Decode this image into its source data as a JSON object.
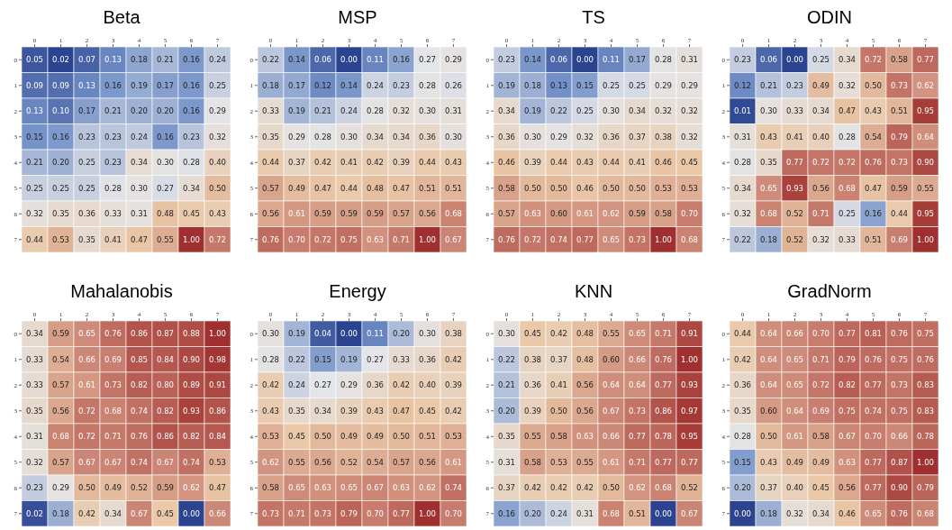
{
  "chart_data": [
    {
      "type": "heatmap",
      "title": "Beta",
      "categories": [
        "0",
        "1",
        "2",
        "3",
        "4",
        "5",
        "6",
        "7"
      ],
      "y_categories": [
        "0",
        "1",
        "2",
        "3",
        "4",
        "5",
        "6",
        "7"
      ],
      "data_labels": true,
      "cells": [
        [
          0.05,
          0.02,
          0.07,
          0.13,
          0.18,
          0.21,
          0.16,
          0.24
        ],
        [
          0.09,
          0.09,
          0.13,
          0.16,
          0.19,
          0.17,
          0.16,
          0.25
        ],
        [
          0.13,
          0.1,
          0.17,
          0.21,
          0.2,
          0.2,
          0.16,
          0.29
        ],
        [
          0.15,
          0.16,
          0.23,
          0.23,
          0.24,
          0.16,
          0.23,
          0.32
        ],
        [
          0.21,
          0.2,
          0.25,
          0.23,
          0.34,
          0.3,
          0.28,
          0.4
        ],
        [
          0.25,
          0.25,
          0.25,
          0.28,
          0.3,
          0.27,
          0.34,
          0.5
        ],
        [
          0.32,
          0.35,
          0.36,
          0.33,
          0.31,
          0.48,
          0.45,
          0.43
        ],
        [
          0.44,
          0.53,
          0.35,
          0.41,
          0.47,
          0.55,
          1.0,
          0.72
        ]
      ],
      "cell_labels": [
        [
          "0.05",
          "0.02",
          "0.07",
          "0.13",
          "0.18",
          "0.21",
          "0.16",
          "0.24"
        ],
        [
          "0.09",
          "0.09",
          "0.13",
          "0.16",
          "0.19",
          "0.17",
          "0.16",
          "0.25"
        ],
        [
          "0.13",
          "0.10",
          "0.17",
          "0.21",
          "0.20",
          "0.20",
          "0.16",
          "0.29"
        ],
        [
          "0.15",
          "0.16",
          "0.23",
          "0.23",
          "0.24",
          "0.16",
          "0.23",
          "0.32"
        ],
        [
          "0.21",
          "0.20",
          "0.25",
          "0.23",
          "0.34",
          "0.30",
          "0.28",
          "0.40"
        ],
        [
          "0.25",
          "0.25",
          "0.25",
          "0.28",
          "0.30",
          "0.27",
          "0.34",
          "0.50"
        ],
        [
          "0.32",
          "0.35",
          "0.36",
          "0.33",
          "0.31",
          "0.48",
          "0.45",
          "0.43"
        ],
        [
          "0.44",
          "0.53",
          "0.35",
          "0.41",
          "0.47",
          "0.55",
          "1.00",
          "0.72"
        ]
      ]
    },
    {
      "type": "heatmap",
      "title": "MSP",
      "categories": [
        "0",
        "1",
        "2",
        "3",
        "4",
        "5",
        "6",
        "7"
      ],
      "y_categories": [
        "0",
        "1",
        "2",
        "3",
        "4",
        "5",
        "6",
        "7"
      ],
      "data_labels": true,
      "cells": [
        [
          0.22,
          0.14,
          0.06,
          0.0,
          0.11,
          0.16,
          0.27,
          0.29
        ],
        [
          0.18,
          0.17,
          0.12,
          0.14,
          0.24,
          0.23,
          0.28,
          0.26
        ],
        [
          0.33,
          0.19,
          0.21,
          0.24,
          0.28,
          0.32,
          0.3,
          0.31
        ],
        [
          0.35,
          0.29,
          0.28,
          0.3,
          0.34,
          0.34,
          0.36,
          0.3
        ],
        [
          0.44,
          0.37,
          0.42,
          0.41,
          0.42,
          0.39,
          0.44,
          0.43
        ],
        [
          0.57,
          0.49,
          0.47,
          0.44,
          0.48,
          0.47,
          0.51,
          0.51
        ],
        [
          0.56,
          0.61,
          0.59,
          0.59,
          0.59,
          0.57,
          0.56,
          0.68
        ],
        [
          0.76,
          0.7,
          0.72,
          0.75,
          0.63,
          0.71,
          1.0,
          0.67
        ]
      ],
      "cell_labels": [
        [
          "0.22",
          "0.14",
          "0.06",
          "0.00",
          "0.11",
          "0.16",
          "0.27",
          "0.29"
        ],
        [
          "0.18",
          "0.17",
          "0.12",
          "0.14",
          "0.24",
          "0.23",
          "0.28",
          "0.26"
        ],
        [
          "0.33",
          "0.19",
          "0.21",
          "0.24",
          "0.28",
          "0.32",
          "0.30",
          "0.31"
        ],
        [
          "0.35",
          "0.29",
          "0.28",
          "0.30",
          "0.34",
          "0.34",
          "0.36",
          "0.30"
        ],
        [
          "0.44",
          "0.37",
          "0.42",
          "0.41",
          "0.42",
          "0.39",
          "0.44",
          "0.43"
        ],
        [
          "0.57",
          "0.49",
          "0.47",
          "0.44",
          "0.48",
          "0.47",
          "0.51",
          "0.51"
        ],
        [
          "0.56",
          "0.61",
          "0.59",
          "0.59",
          "0.59",
          "0.57",
          "0.56",
          "0.68"
        ],
        [
          "0.76",
          "0.70",
          "0.72",
          "0.75",
          "0.63",
          "0.71",
          "1.00",
          "0.67"
        ]
      ]
    },
    {
      "type": "heatmap",
      "title": "TS",
      "categories": [
        "0",
        "1",
        "2",
        "3",
        "4",
        "5",
        "6",
        "7"
      ],
      "y_categories": [
        "0",
        "1",
        "2",
        "3",
        "4",
        "5",
        "6",
        "7"
      ],
      "data_labels": true,
      "cells": [
        [
          0.23,
          0.14,
          0.06,
          0.0,
          0.11,
          0.17,
          0.28,
          0.31
        ],
        [
          0.19,
          0.18,
          0.13,
          0.15,
          0.25,
          0.25,
          0.29,
          0.29
        ],
        [
          0.34,
          0.19,
          0.22,
          0.25,
          0.3,
          0.34,
          0.32,
          0.32
        ],
        [
          0.36,
          0.3,
          0.29,
          0.32,
          0.36,
          0.37,
          0.38,
          0.32
        ],
        [
          0.46,
          0.39,
          0.44,
          0.43,
          0.44,
          0.41,
          0.46,
          0.45
        ],
        [
          0.58,
          0.5,
          0.5,
          0.46,
          0.5,
          0.5,
          0.53,
          0.53
        ],
        [
          0.57,
          0.63,
          0.6,
          0.61,
          0.62,
          0.59,
          0.58,
          0.7
        ],
        [
          0.76,
          0.72,
          0.74,
          0.77,
          0.65,
          0.73,
          1.0,
          0.68
        ]
      ],
      "cell_labels": [
        [
          "0.23",
          "0.14",
          "0.06",
          "0.00",
          "0.11",
          "0.17",
          "0.28",
          "0.31"
        ],
        [
          "0.19",
          "0.18",
          "0.13",
          "0.15",
          "0.25",
          "0.25",
          "0.29",
          "0.29"
        ],
        [
          "0.34",
          "0.19",
          "0.22",
          "0.25",
          "0.30",
          "0.34",
          "0.32",
          "0.32"
        ],
        [
          "0.36",
          "0.30",
          "0.29",
          "0.32",
          "0.36",
          "0.37",
          "0.38",
          "0.32"
        ],
        [
          "0.46",
          "0.39",
          "0.44",
          "0.43",
          "0.44",
          "0.41",
          "0.46",
          "0.45"
        ],
        [
          "0.58",
          "0.50",
          "0.50",
          "0.46",
          "0.50",
          "0.50",
          "0.53",
          "0.53"
        ],
        [
          "0.57",
          "0.63",
          "0.60",
          "0.61",
          "0.62",
          "0.59",
          "0.58",
          "0.70"
        ],
        [
          "0.76",
          "0.72",
          "0.74",
          "0.77",
          "0.65",
          "0.73",
          "1.00",
          "0.68"
        ]
      ]
    },
    {
      "type": "heatmap",
      "title": "ODIN",
      "categories": [
        "0",
        "1",
        "2",
        "3",
        "4",
        "5",
        "6",
        "7"
      ],
      "y_categories": [
        "0",
        "1",
        "2",
        "3",
        "4",
        "5",
        "6",
        "7"
      ],
      "data_labels": true,
      "cells": [
        [
          0.23,
          0.06,
          0.0,
          0.25,
          0.34,
          0.72,
          0.58,
          0.77
        ],
        [
          0.12,
          0.21,
          0.23,
          0.49,
          0.32,
          0.5,
          0.73,
          0.62
        ],
        [
          0.01,
          0.3,
          0.33,
          0.34,
          0.47,
          0.43,
          0.51,
          0.95
        ],
        [
          0.31,
          0.43,
          0.41,
          0.4,
          0.28,
          0.54,
          0.79,
          0.64
        ],
        [
          0.28,
          0.35,
          0.77,
          0.72,
          0.72,
          0.76,
          0.73,
          0.9
        ],
        [
          0.34,
          0.65,
          0.93,
          0.56,
          0.68,
          0.47,
          0.59,
          0.55
        ],
        [
          0.32,
          0.68,
          0.52,
          0.71,
          0.25,
          0.16,
          0.44,
          0.95
        ],
        [
          0.22,
          0.18,
          0.52,
          0.32,
          0.33,
          0.51,
          0.69,
          1.0
        ]
      ],
      "cell_labels": [
        [
          "0.23",
          "0.06",
          "0.00",
          "0.25",
          "0.34",
          "0.72",
          "0.58",
          "0.77"
        ],
        [
          "0.12",
          "0.21",
          "0.23",
          "0.49",
          "0.32",
          "0.50",
          "0.73",
          "0.62"
        ],
        [
          "0.01",
          "0.30",
          "0.33",
          "0.34",
          "0.47",
          "0.43",
          "0.51",
          "0.95"
        ],
        [
          "0.31",
          "0.43",
          "0.41",
          "0.40",
          "0.28",
          "0.54",
          "0.79",
          "0.64"
        ],
        [
          "0.28",
          "0.35",
          "0.77",
          "0.72",
          "0.72",
          "0.76",
          "0.73",
          "0.90"
        ],
        [
          "0.34",
          "0.65",
          "0.93",
          "0.56",
          "0.68",
          "0.47",
          "0.59",
          "0.55"
        ],
        [
          "0.32",
          "0.68",
          "0.52",
          "0.71",
          "0.25",
          "0.16",
          "0.44",
          "0.95"
        ],
        [
          "0.22",
          "0.18",
          "0.52",
          "0.32",
          "0.33",
          "0.51",
          "0.69",
          "1.00"
        ]
      ]
    },
    {
      "type": "heatmap",
      "title": "Mahalanobis",
      "categories": [
        "0",
        "1",
        "2",
        "3",
        "4",
        "5",
        "6",
        "7"
      ],
      "y_categories": [
        "0",
        "1",
        "2",
        "3",
        "4",
        "5",
        "6",
        "7"
      ],
      "data_labels": true,
      "cells": [
        [
          0.34,
          0.59,
          0.65,
          0.76,
          0.86,
          0.87,
          0.88,
          1.0
        ],
        [
          0.33,
          0.54,
          0.66,
          0.69,
          0.85,
          0.84,
          0.9,
          0.98
        ],
        [
          0.33,
          0.57,
          0.61,
          0.73,
          0.82,
          0.8,
          0.89,
          0.91
        ],
        [
          0.35,
          0.56,
          0.72,
          0.68,
          0.74,
          0.82,
          0.93,
          0.86
        ],
        [
          0.31,
          0.68,
          0.72,
          0.71,
          0.76,
          0.86,
          0.82,
          0.84
        ],
        [
          0.32,
          0.57,
          0.67,
          0.67,
          0.74,
          0.67,
          0.74,
          0.53
        ],
        [
          0.23,
          0.29,
          0.5,
          0.49,
          0.52,
          0.59,
          0.62,
          0.47
        ],
        [
          0.02,
          0.18,
          0.42,
          0.34,
          0.67,
          0.45,
          0.0,
          0.66
        ]
      ],
      "cell_labels": [
        [
          "0.34",
          "0.59",
          "0.65",
          "0.76",
          "0.86",
          "0.87",
          "0.88",
          "1.00"
        ],
        [
          "0.33",
          "0.54",
          "0.66",
          "0.69",
          "0.85",
          "0.84",
          "0.90",
          "0.98"
        ],
        [
          "0.33",
          "0.57",
          "0.61",
          "0.73",
          "0.82",
          "0.80",
          "0.89",
          "0.91"
        ],
        [
          "0.35",
          "0.56",
          "0.72",
          "0.68",
          "0.74",
          "0.82",
          "0.93",
          "0.86"
        ],
        [
          "0.31",
          "0.68",
          "0.72",
          "0.71",
          "0.76",
          "0.86",
          "0.82",
          "0.84"
        ],
        [
          "0.32",
          "0.57",
          "0.67",
          "0.67",
          "0.74",
          "0.67",
          "0.74",
          "0.53"
        ],
        [
          "0.23",
          "0.29",
          "0.50",
          "0.49",
          "0.52",
          "0.59",
          "0.62",
          "0.47"
        ],
        [
          "0.02",
          "0.18",
          "0.42",
          "0.34",
          "0.67",
          "0.45",
          "0.00",
          "0.66"
        ]
      ]
    },
    {
      "type": "heatmap",
      "title": "Energy",
      "categories": [
        "0",
        "1",
        "2",
        "3",
        "4",
        "5",
        "6",
        "7"
      ],
      "y_categories": [
        "0",
        "1",
        "2",
        "3",
        "4",
        "5",
        "6",
        "7"
      ],
      "data_labels": true,
      "cells": [
        [
          0.3,
          0.19,
          0.04,
          0.0,
          0.11,
          0.2,
          0.3,
          0.38
        ],
        [
          0.28,
          0.22,
          0.15,
          0.19,
          0.27,
          0.33,
          0.36,
          0.42
        ],
        [
          0.42,
          0.24,
          0.27,
          0.29,
          0.36,
          0.42,
          0.4,
          0.39
        ],
        [
          0.43,
          0.35,
          0.34,
          0.39,
          0.43,
          0.47,
          0.45,
          0.42
        ],
        [
          0.53,
          0.45,
          0.5,
          0.49,
          0.49,
          0.5,
          0.51,
          0.53
        ],
        [
          0.62,
          0.55,
          0.56,
          0.52,
          0.54,
          0.57,
          0.56,
          0.61
        ],
        [
          0.58,
          0.65,
          0.63,
          0.65,
          0.67,
          0.63,
          0.62,
          0.74
        ],
        [
          0.73,
          0.71,
          0.73,
          0.79,
          0.7,
          0.77,
          1.0,
          0.7
        ]
      ],
      "cell_labels": [
        [
          "0.30",
          "0.19",
          "0.04",
          "0.00",
          "0.11",
          "0.20",
          "0.30",
          "0.38"
        ],
        [
          "0.28",
          "0.22",
          "0.15",
          "0.19",
          "0.27",
          "0.33",
          "0.36",
          "0.42"
        ],
        [
          "0.42",
          "0.24",
          "0.27",
          "0.29",
          "0.36",
          "0.42",
          "0.40",
          "0.39"
        ],
        [
          "0.43",
          "0.35",
          "0.34",
          "0.39",
          "0.43",
          "0.47",
          "0.45",
          "0.42"
        ],
        [
          "0.53",
          "0.45",
          "0.50",
          "0.49",
          "0.49",
          "0.50",
          "0.51",
          "0.53"
        ],
        [
          "0.62",
          "0.55",
          "0.56",
          "0.52",
          "0.54",
          "0.57",
          "0.56",
          "0.61"
        ],
        [
          "0.58",
          "0.65",
          "0.63",
          "0.65",
          "0.67",
          "0.63",
          "0.62",
          "0.74"
        ],
        [
          "0.73",
          "0.71",
          "0.73",
          "0.79",
          "0.70",
          "0.77",
          "1.00",
          "0.70"
        ]
      ]
    },
    {
      "type": "heatmap",
      "title": "KNN",
      "categories": [
        "0",
        "1",
        "2",
        "3",
        "4",
        "5",
        "6",
        "7"
      ],
      "y_categories": [
        "0",
        "1",
        "2",
        "3",
        "4",
        "5",
        "6",
        "7"
      ],
      "data_labels": true,
      "cells": [
        [
          0.3,
          0.45,
          0.42,
          0.48,
          0.55,
          0.65,
          0.71,
          0.91
        ],
        [
          0.22,
          0.38,
          0.37,
          0.48,
          0.6,
          0.66,
          0.76,
          1.0
        ],
        [
          0.21,
          0.36,
          0.41,
          0.56,
          0.64,
          0.64,
          0.77,
          0.93
        ],
        [
          0.2,
          0.39,
          0.5,
          0.56,
          0.67,
          0.73,
          0.86,
          0.97
        ],
        [
          0.35,
          0.55,
          0.58,
          0.63,
          0.66,
          0.77,
          0.78,
          0.95
        ],
        [
          0.31,
          0.58,
          0.53,
          0.55,
          0.61,
          0.71,
          0.77,
          0.77
        ],
        [
          0.37,
          0.42,
          0.42,
          0.42,
          0.5,
          0.62,
          0.68,
          0.52
        ],
        [
          0.16,
          0.2,
          0.24,
          0.31,
          0.68,
          0.51,
          0.0,
          0.67
        ]
      ],
      "cell_labels": [
        [
          "0.30",
          "0.45",
          "0.42",
          "0.48",
          "0.55",
          "0.65",
          "0.71",
          "0.91"
        ],
        [
          "0.22",
          "0.38",
          "0.37",
          "0.48",
          "0.60",
          "0.66",
          "0.76",
          "1.00"
        ],
        [
          "0.21",
          "0.36",
          "0.41",
          "0.56",
          "0.64",
          "0.64",
          "0.77",
          "0.93"
        ],
        [
          "0.20",
          "0.39",
          "0.50",
          "0.56",
          "0.67",
          "0.73",
          "0.86",
          "0.97"
        ],
        [
          "0.35",
          "0.55",
          "0.58",
          "0.63",
          "0.66",
          "0.77",
          "0.78",
          "0.95"
        ],
        [
          "0.31",
          "0.58",
          "0.53",
          "0.55",
          "0.61",
          "0.71",
          "0.77",
          "0.77"
        ],
        [
          "0.37",
          "0.42",
          "0.42",
          "0.42",
          "0.50",
          "0.62",
          "0.68",
          "0.52"
        ],
        [
          "0.16",
          "0.20",
          "0.24",
          "0.31",
          "0.68",
          "0.51",
          "0.00",
          "0.67"
        ]
      ]
    },
    {
      "type": "heatmap",
      "title": "GradNorm",
      "categories": [
        "0",
        "1",
        "2",
        "3",
        "4",
        "5",
        "6",
        "7"
      ],
      "y_categories": [
        "0",
        "1",
        "2",
        "3",
        "4",
        "5",
        "6",
        "7"
      ],
      "data_labels": true,
      "cells": [
        [
          0.44,
          0.64,
          0.66,
          0.7,
          0.77,
          0.81,
          0.76,
          0.75
        ],
        [
          0.42,
          0.64,
          0.65,
          0.71,
          0.79,
          0.76,
          0.75,
          0.76
        ],
        [
          0.36,
          0.64,
          0.65,
          0.72,
          0.82,
          0.77,
          0.73,
          0.83
        ],
        [
          0.35,
          0.6,
          0.64,
          0.69,
          0.75,
          0.74,
          0.75,
          0.83
        ],
        [
          0.28,
          0.5,
          0.61,
          0.58,
          0.67,
          0.7,
          0.66,
          0.78
        ],
        [
          0.15,
          0.43,
          0.49,
          0.49,
          0.63,
          0.77,
          0.87,
          1.0
        ],
        [
          0.2,
          0.37,
          0.4,
          0.45,
          0.56,
          0.77,
          0.9,
          0.79
        ],
        [
          0.0,
          0.18,
          0.32,
          0.34,
          0.46,
          0.65,
          0.76,
          0.68
        ]
      ],
      "cell_labels": [
        [
          "0.44",
          "0.64",
          "0.66",
          "0.70",
          "0.77",
          "0.81",
          "0.76",
          "0.75"
        ],
        [
          "0.42",
          "0.64",
          "0.65",
          "0.71",
          "0.79",
          "0.76",
          "0.75",
          "0.76"
        ],
        [
          "0.36",
          "0.64",
          "0.65",
          "0.72",
          "0.82",
          "0.77",
          "0.73",
          "0.83"
        ],
        [
          "0.35",
          "0.60",
          "0.64",
          "0.69",
          "0.75",
          "0.74",
          "0.75",
          "0.83"
        ],
        [
          "0.28",
          "0.50",
          "0.61",
          "0.58",
          "0.67",
          "0.70",
          "0.66",
          "0.78"
        ],
        [
          "0.15",
          "0.43",
          "0.49",
          "0.49",
          "0.63",
          "0.77",
          "0.87",
          "1.00"
        ],
        [
          "0.20",
          "0.37",
          "0.40",
          "0.45",
          "0.56",
          "0.77",
          "0.90",
          "0.79"
        ],
        [
          "0.00",
          "0.18",
          "0.32",
          "0.34",
          "0.46",
          "0.65",
          "0.76",
          "0.68"
        ]
      ]
    }
  ]
}
